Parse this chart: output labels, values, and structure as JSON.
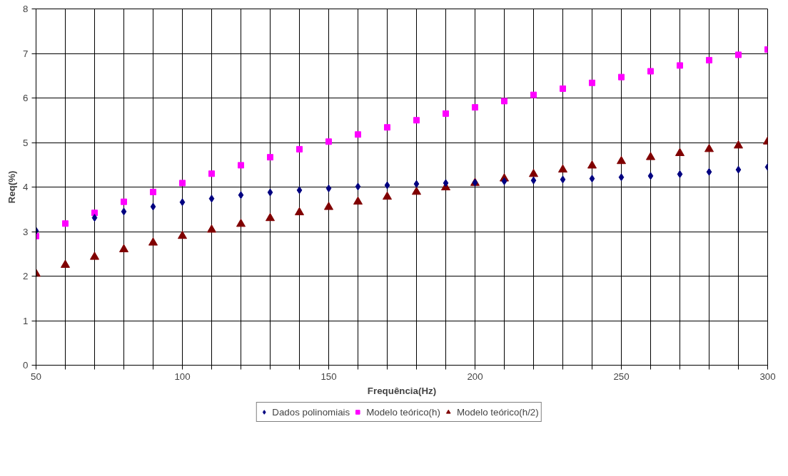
{
  "chart_data": {
    "type": "scatter",
    "xlabel": "Frequência(Hz)",
    "ylabel": "Req(%)",
    "x": [
      50,
      60,
      70,
      80,
      90,
      100,
      110,
      120,
      130,
      140,
      150,
      160,
      170,
      180,
      190,
      200,
      210,
      220,
      230,
      240,
      250,
      260,
      270,
      280,
      290,
      300
    ],
    "series": [
      {
        "name": "Dados polinomiais",
        "color": "#000080",
        "marker": "diamond",
        "values": [
          3.02,
          null,
          3.31,
          3.45,
          3.56,
          3.66,
          3.74,
          3.82,
          3.88,
          3.93,
          3.97,
          4.01,
          4.04,
          4.07,
          4.09,
          4.1,
          4.13,
          4.15,
          4.17,
          4.19,
          4.22,
          4.25,
          4.29,
          4.34,
          4.39,
          4.45
        ]
      },
      {
        "name": "Modelo teórico(h)",
        "color": "#ff00ff",
        "marker": "square",
        "values": [
          2.9,
          3.18,
          3.42,
          3.67,
          3.89,
          4.09,
          4.3,
          4.49,
          4.67,
          4.85,
          5.02,
          5.18,
          5.34,
          5.5,
          5.65,
          5.79,
          5.93,
          6.07,
          6.21,
          6.34,
          6.47,
          6.6,
          6.73,
          6.85,
          6.97,
          7.09
        ]
      },
      {
        "name": "Modelo teórico(h/2)",
        "color": "#800000",
        "marker": "triangle",
        "values": [
          2.05,
          2.25,
          2.43,
          2.6,
          2.75,
          2.9,
          3.04,
          3.17,
          3.3,
          3.43,
          3.55,
          3.67,
          3.78,
          3.89,
          3.99,
          4.09,
          4.19,
          4.29,
          4.39,
          4.48,
          4.58,
          4.67,
          4.76,
          4.85,
          4.93,
          5.02
        ]
      }
    ],
    "xlim": [
      50,
      300
    ],
    "xticks": [
      50,
      {
        "value": 60,
        "label": null
      },
      {
        "value": 70,
        "label": null
      },
      {
        "value": 80,
        "label": null
      },
      {
        "value": 90,
        "label": null
      },
      100,
      {
        "value": 110,
        "label": null
      },
      {
        "value": 120,
        "label": null
      },
      {
        "value": 130,
        "label": null
      },
      {
        "value": 140,
        "label": null
      },
      150,
      {
        "value": 160,
        "label": null
      },
      {
        "value": 170,
        "label": null
      },
      {
        "value": 180,
        "label": null
      },
      {
        "value": 190,
        "label": null
      },
      200,
      {
        "value": 210,
        "label": null
      },
      {
        "value": 220,
        "label": null
      },
      {
        "value": 230,
        "label": null
      },
      {
        "value": 240,
        "label": null
      },
      250,
      {
        "value": 260,
        "label": null
      },
      {
        "value": 270,
        "label": null
      },
      {
        "value": 280,
        "label": null
      },
      {
        "value": 290,
        "label": null
      },
      300
    ],
    "ylim": [
      0,
      8
    ],
    "yticks": [
      0,
      1,
      2,
      3,
      4,
      5,
      6,
      7,
      8
    ],
    "grid": true,
    "legend": "bottom"
  }
}
